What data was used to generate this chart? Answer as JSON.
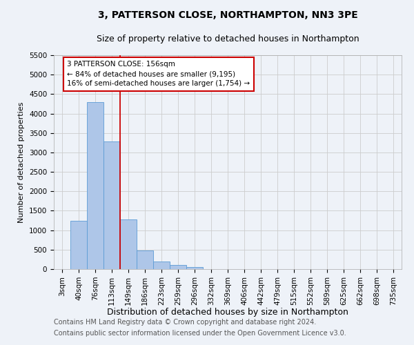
{
  "title": "3, PATTERSON CLOSE, NORTHAMPTON, NN3 3PE",
  "subtitle": "Size of property relative to detached houses in Northampton",
  "xlabel": "Distribution of detached houses by size in Northampton",
  "ylabel": "Number of detached properties",
  "categories": [
    "3sqm",
    "40sqm",
    "76sqm",
    "113sqm",
    "149sqm",
    "186sqm",
    "223sqm",
    "259sqm",
    "296sqm",
    "332sqm",
    "369sqm",
    "406sqm",
    "442sqm",
    "479sqm",
    "515sqm",
    "552sqm",
    "589sqm",
    "625sqm",
    "662sqm",
    "698sqm",
    "735sqm"
  ],
  "values": [
    0,
    1250,
    4300,
    3280,
    1280,
    480,
    200,
    100,
    60,
    0,
    0,
    0,
    0,
    0,
    0,
    0,
    0,
    0,
    0,
    0,
    0
  ],
  "bar_color": "#aec6e8",
  "bar_edgecolor": "#5b9bd5",
  "vline_x_index": 3.5,
  "vline_color": "#cc0000",
  "annotation_text": "3 PATTERSON CLOSE: 156sqm\n← 84% of detached houses are smaller (9,195)\n16% of semi-detached houses are larger (1,754) →",
  "annotation_box_color": "white",
  "annotation_box_edgecolor": "#cc0000",
  "ylim": [
    0,
    5500
  ],
  "yticks": [
    0,
    500,
    1000,
    1500,
    2000,
    2500,
    3000,
    3500,
    4000,
    4500,
    5000,
    5500
  ],
  "grid_color": "#cccccc",
  "background_color": "#eef2f8",
  "footer_line1": "Contains HM Land Registry data © Crown copyright and database right 2024.",
  "footer_line2": "Contains public sector information licensed under the Open Government Licence v3.0.",
  "title_fontsize": 10,
  "subtitle_fontsize": 9,
  "xlabel_fontsize": 9,
  "ylabel_fontsize": 8,
  "tick_fontsize": 7.5,
  "footer_fontsize": 7
}
